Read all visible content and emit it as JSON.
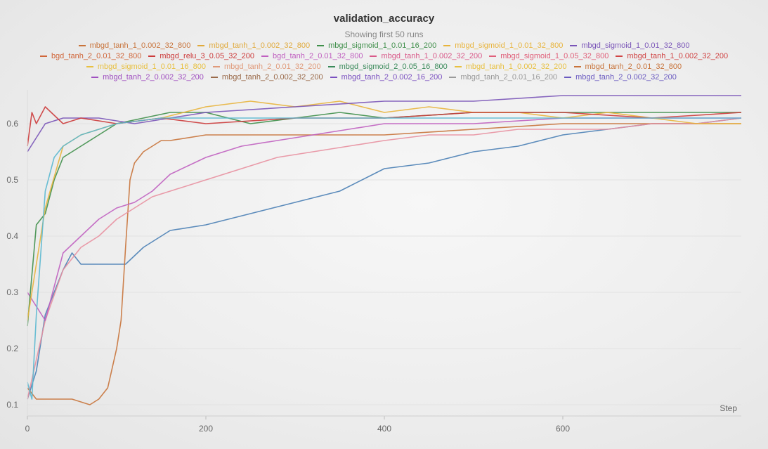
{
  "chart_data": {
    "type": "line",
    "title": "validation_accuracy",
    "subtitle": "Showing first 50 runs",
    "xlabel": "Step",
    "ylabel": "",
    "xlim": [
      0,
      800
    ],
    "ylim": [
      0.08,
      0.66
    ],
    "x_ticks": [
      "0",
      "200",
      "400",
      "600"
    ],
    "y_ticks": [
      "0.1",
      "0.2",
      "0.3",
      "0.4",
      "0.5",
      "0.6"
    ],
    "grid": true,
    "legend_placement": "top",
    "legend_rows": [
      [
        "mbgd_tanh_1_0.002_32_800",
        "mbgd_tanh_1_0.002_32_800",
        "mbgd_sigmoid_1_0.01_16_200",
        "mbgd_sigmoid_1_0.01_32_800",
        "mbgd_sigmoid_1_0.01_32_800"
      ],
      [
        "bgd_tanh_2_0.01_32_800",
        "mbgd_relu_3_0.05_32_200",
        "bgd_tanh_2_0.01_32_800",
        "mbgd_tanh_1_0.002_32_200",
        "mbgd_sigmoid_1_0.05_32_800",
        "mbgd_tanh_1_0.002_32_200"
      ],
      [
        "mbgd_sigmoid_1_0.01_16_800",
        "mbgd_tanh_2_0.01_32_200",
        "mbgd_sigmoid_2_0.05_16_800",
        "mbgd_tanh_1_0.002_32_200",
        "mbgd_tanh_2_0.01_32_800"
      ],
      [
        "mbgd_tanh_2_0.002_32_200",
        "mbgd_tanh_2_0.002_32_200",
        "mbgd_tanh_2_0.002_16_200",
        "mbgd_tanh_2_0.01_16_200",
        "mbgd_tanh_2_0.002_32_200"
      ]
    ],
    "legend_colors": [
      [
        "#c8733a",
        "#e0a93a",
        "#3f8f4a",
        "#e8b43c",
        "#7a55b8"
      ],
      [
        "#d0663a",
        "#cc3b3b",
        "#c060c0",
        "#d95a8a",
        "#e0607a",
        "#d04444"
      ],
      [
        "#e8c040",
        "#e09a7a",
        "#3a8a5a",
        "#e8c040",
        "#c8733a"
      ],
      [
        "#a050c0",
        "#9a6a4a",
        "#7a50c0",
        "#9a9a9a",
        "#6a5ac0"
      ]
    ],
    "series": [
      {
        "name": "mbgd_tanh_1_0.002_32_800",
        "color": "#4a7fb5",
        "x": [
          0,
          10,
          20,
          30,
          40,
          50,
          60,
          70,
          90,
          110,
          130,
          160,
          200,
          250,
          300,
          350,
          400,
          450,
          500,
          550,
          600,
          650,
          700,
          750,
          800
        ],
        "y": [
          0.11,
          0.16,
          0.26,
          0.3,
          0.34,
          0.37,
          0.35,
          0.35,
          0.35,
          0.35,
          0.38,
          0.41,
          0.42,
          0.44,
          0.46,
          0.48,
          0.52,
          0.53,
          0.55,
          0.56,
          0.58,
          0.59,
          0.6,
          0.6,
          0.61
        ]
      },
      {
        "name": "mbgd_tanh_1_0.002_32_800",
        "color": "#c8733a",
        "x": [
          0,
          10,
          30,
          50,
          70,
          80,
          90,
          100,
          105,
          110,
          115,
          120,
          130,
          150,
          160,
          200,
          250,
          300,
          350,
          400,
          500,
          600,
          700,
          800
        ],
        "y": [
          0.13,
          0.11,
          0.11,
          0.11,
          0.1,
          0.11,
          0.13,
          0.2,
          0.25,
          0.38,
          0.5,
          0.53,
          0.55,
          0.57,
          0.57,
          0.58,
          0.58,
          0.58,
          0.58,
          0.58,
          0.59,
          0.6,
          0.6,
          0.6
        ]
      },
      {
        "name": "mbgd_tanh_1_0.002_32_200",
        "color": "#e890a0",
        "x": [
          0,
          20,
          40,
          60,
          80,
          100,
          120,
          140,
          160,
          200,
          240,
          280,
          320,
          360,
          400,
          450,
          500,
          550,
          600,
          650,
          700,
          750,
          800
        ],
        "y": [
          0.11,
          0.25,
          0.34,
          0.38,
          0.4,
          0.43,
          0.45,
          0.47,
          0.48,
          0.5,
          0.52,
          0.54,
          0.55,
          0.56,
          0.57,
          0.58,
          0.58,
          0.59,
          0.59,
          0.59,
          0.6,
          0.6,
          0.61
        ]
      },
      {
        "name": "mbgd_tanh_2_0.002_32_200",
        "color": "#c060c0",
        "x": [
          0,
          20,
          40,
          60,
          80,
          100,
          120,
          140,
          160,
          200,
          240,
          280,
          320,
          360,
          400,
          500,
          600,
          700,
          800
        ],
        "y": [
          0.3,
          0.25,
          0.37,
          0.4,
          0.43,
          0.45,
          0.46,
          0.48,
          0.51,
          0.54,
          0.56,
          0.57,
          0.58,
          0.59,
          0.6,
          0.6,
          0.61,
          0.61,
          0.61
        ]
      },
      {
        "name": "mbgd_sigmoid_1_0.01_16_200",
        "color": "#3f8f4a",
        "x": [
          0,
          10,
          20,
          30,
          40,
          60,
          80,
          100,
          130,
          160,
          200,
          250,
          300,
          350,
          400,
          500,
          600,
          700,
          800
        ],
        "y": [
          0.24,
          0.42,
          0.44,
          0.5,
          0.54,
          0.56,
          0.58,
          0.6,
          0.61,
          0.62,
          0.62,
          0.6,
          0.61,
          0.62,
          0.61,
          0.62,
          0.62,
          0.62,
          0.62
        ]
      },
      {
        "name": "mbgd_sigmoid_1_0.01_32_800",
        "color": "#e8b43c",
        "x": [
          0,
          20,
          40,
          60,
          100,
          150,
          200,
          250,
          300,
          350,
          400,
          450,
          500,
          550,
          600,
          650,
          700,
          750,
          800
        ],
        "y": [
          0.25,
          0.45,
          0.56,
          0.58,
          0.6,
          0.61,
          0.63,
          0.64,
          0.63,
          0.64,
          0.62,
          0.63,
          0.62,
          0.62,
          0.61,
          0.62,
          0.61,
          0.6,
          0.6
        ]
      },
      {
        "name": "mbgd_sigmoid_1_0.01_32_800",
        "color": "#7a55b8",
        "x": [
          0,
          20,
          40,
          80,
          120,
          160,
          200,
          300,
          400,
          500,
          600,
          700,
          800
        ],
        "y": [
          0.55,
          0.6,
          0.61,
          0.61,
          0.6,
          0.61,
          0.62,
          0.63,
          0.64,
          0.64,
          0.65,
          0.65,
          0.65
        ]
      },
      {
        "name": "mbgd_relu_3_0.05_32_200",
        "color": "#cc3b3b",
        "x": [
          0,
          5,
          10,
          20,
          40,
          60,
          100,
          150,
          200,
          300,
          400,
          500,
          600,
          700,
          800
        ],
        "y": [
          0.56,
          0.62,
          0.6,
          0.63,
          0.6,
          0.61,
          0.6,
          0.61,
          0.6,
          0.61,
          0.61,
          0.62,
          0.62,
          0.61,
          0.62
        ]
      },
      {
        "name": "mbgd_tanh_2_0.01_16_200",
        "color": "#5ab8d0",
        "x": [
          0,
          5,
          10,
          20,
          30,
          40,
          60,
          100,
          150,
          200,
          300,
          400,
          500,
          600,
          700,
          800
        ],
        "y": [
          0.14,
          0.11,
          0.26,
          0.48,
          0.54,
          0.56,
          0.58,
          0.6,
          0.61,
          0.61,
          0.61,
          0.61,
          0.61,
          0.61,
          0.61,
          0.61
        ]
      }
    ]
  }
}
